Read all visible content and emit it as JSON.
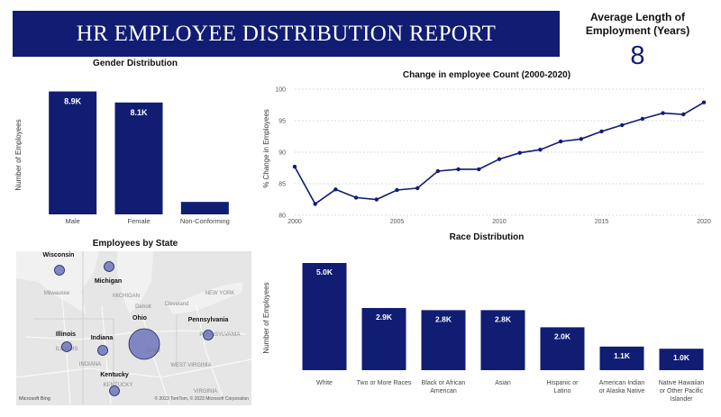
{
  "report_title": "HR EMPLOYEE DISTRIBUTION REPORT",
  "kpi": {
    "title": "Average Length of Employment (Years)",
    "value": "8"
  },
  "colors": {
    "bar": "#111c73",
    "banner": "#111c73",
    "line": "#111c73",
    "bubble": "#6f74b8"
  },
  "chart_data": [
    {
      "id": "gender",
      "type": "bar",
      "title": "Gender Distribution",
      "ylabel": "Number of Employees",
      "categories": [
        "Male",
        "Female",
        "Non-Conforming"
      ],
      "values": [
        8900,
        8100,
        900
      ],
      "data_labels": [
        "8.9K",
        "8.1K",
        ""
      ],
      "ylim": [
        0,
        9000
      ],
      "grid": false
    },
    {
      "id": "change",
      "type": "line",
      "title": "Change in employee Count (2000-2020)",
      "ylabel": "% Change in Employees",
      "x": [
        2000,
        2001,
        2002,
        2003,
        2004,
        2005,
        2006,
        2007,
        2008,
        2009,
        2010,
        2011,
        2012,
        2013,
        2014,
        2015,
        2016,
        2017,
        2018,
        2019,
        2020
      ],
      "y": [
        87.7,
        81.8,
        84.1,
        82.8,
        82.5,
        84.0,
        84.3,
        87.0,
        87.3,
        87.3,
        88.9,
        89.9,
        90.4,
        91.7,
        92.1,
        93.3,
        94.3,
        95.3,
        96.2,
        96.0,
        97.9
      ],
      "x_ticks": [
        2000,
        2005,
        2010,
        2015,
        2020
      ],
      "y_ticks": [
        80,
        85,
        90,
        95,
        100
      ],
      "xlim": [
        2000,
        2020
      ],
      "ylim": [
        80,
        100
      ],
      "grid": true
    },
    {
      "id": "race",
      "type": "bar",
      "title": "Race Distribution",
      "ylabel": "Number of Employees",
      "categories": [
        "White",
        "Two or More Races",
        "Black or African American",
        "Asian",
        "Hispanic or Latino",
        "American Indian or Alaska Native",
        "Native Hawaiian or Other Pacific Islander"
      ],
      "values": [
        5000,
        2900,
        2800,
        2800,
        2000,
        1100,
        1000
      ],
      "data_labels": [
        "5.0K",
        "2.9K",
        "2.8K",
        "2.8K",
        "2.0K",
        "1.1K",
        "1.0K"
      ],
      "ylim": [
        0,
        5000
      ],
      "grid": false
    }
  ],
  "map": {
    "title": "Employees by State",
    "states": [
      {
        "name": "Wisconsin",
        "size": "small"
      },
      {
        "name": "Michigan",
        "size": "small"
      },
      {
        "name": "Ohio",
        "size": "large"
      },
      {
        "name": "Pennsylvania",
        "size": "small"
      },
      {
        "name": "Illinois",
        "size": "small"
      },
      {
        "name": "Indiana",
        "size": "small"
      },
      {
        "name": "Kentucky",
        "size": "small"
      }
    ],
    "basemap_labels": [
      "Milwaukee",
      "MICHIGAN",
      "Detroit",
      "Cleveland",
      "NEW YORK",
      "PENNSYLVANIA",
      "ILLINOIS",
      "INDIANA",
      "OHIO",
      "WEST VIRGINIA",
      "KENTUCKY",
      "VIRGINIA"
    ],
    "attribution": "© 2023 TomTom, © 2023 Microsoft Corporation",
    "bing_logo": "Microsoft Bing"
  }
}
